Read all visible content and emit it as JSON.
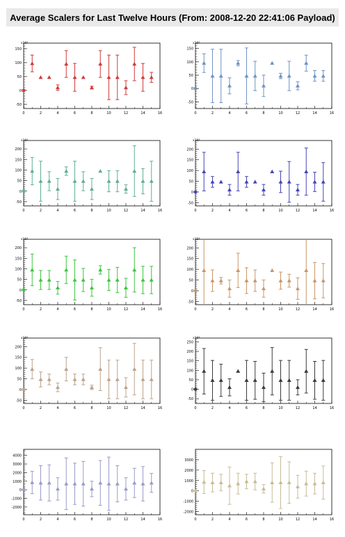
{
  "title": "Average Scalers for Last Twelve Hours (From: 2008-12-20 22:41:06 Payload)",
  "chart_data": [
    {
      "type": "scatter",
      "color": "#cf3b3b",
      "xlim": [
        0,
        16
      ],
      "xticks": [
        0,
        2,
        4,
        6,
        8,
        10,
        12,
        14,
        16
      ],
      "ylim": [
        -65,
        170
      ],
      "yticks": [
        -50,
        0,
        50,
        100,
        150
      ],
      "exponent": "x10³",
      "x": [
        0,
        1,
        2,
        3,
        4,
        5,
        6,
        7,
        8,
        9,
        10,
        11,
        12,
        13,
        14,
        15
      ],
      "y": [
        0,
        97,
        47,
        47,
        10,
        95,
        47,
        47,
        10,
        95,
        47,
        47,
        10,
        95,
        47,
        47
      ],
      "err": [
        3,
        30,
        0,
        0,
        10,
        48,
        50,
        0,
        5,
        48,
        80,
        80,
        25,
        60,
        50,
        18
      ]
    },
    {
      "type": "scatter",
      "color": "#6e93c5",
      "xlim": [
        0,
        16
      ],
      "xticks": [
        0,
        2,
        4,
        6,
        8,
        10,
        12,
        14,
        16
      ],
      "ylim": [
        -75,
        170
      ],
      "yticks": [
        -50,
        0,
        50,
        100,
        150
      ],
      "exponent": "x10³",
      "x": [
        0,
        1,
        2,
        3,
        4,
        5,
        6,
        7,
        8,
        9,
        10,
        11,
        12,
        13,
        14,
        15
      ],
      "y": [
        0,
        95,
        47,
        47,
        10,
        95,
        47,
        47,
        10,
        95,
        47,
        47,
        10,
        95,
        47,
        47
      ],
      "err": [
        3,
        35,
        100,
        100,
        30,
        10,
        105,
        55,
        40,
        0,
        10,
        55,
        15,
        30,
        20,
        20
      ]
    },
    {
      "type": "scatter",
      "color": "#5faf92",
      "xlim": [
        0,
        16
      ],
      "xticks": [
        0,
        2,
        4,
        6,
        8,
        10,
        12,
        14,
        16
      ],
      "ylim": [
        -70,
        240
      ],
      "yticks": [
        -50,
        0,
        50,
        100,
        150,
        200
      ],
      "exponent": "x10³",
      "x": [
        0,
        1,
        2,
        3,
        4,
        5,
        6,
        7,
        8,
        9,
        10,
        11,
        12,
        13,
        14,
        15
      ],
      "y": [
        0,
        95,
        47,
        47,
        10,
        95,
        47,
        47,
        10,
        95,
        47,
        47,
        10,
        95,
        47,
        47
      ],
      "err": [
        3,
        65,
        95,
        45,
        50,
        20,
        95,
        45,
        50,
        0,
        50,
        50,
        20,
        120,
        60,
        95
      ]
    },
    {
      "type": "scatter",
      "color": "#4545b5",
      "xlim": [
        0,
        16
      ],
      "xticks": [
        0,
        2,
        4,
        6,
        8,
        10,
        12,
        14,
        16
      ],
      "ylim": [
        -65,
        240
      ],
      "yticks": [
        -50,
        0,
        50,
        100,
        150,
        200
      ],
      "exponent": "x10³",
      "x": [
        0,
        1,
        2,
        3,
        4,
        5,
        6,
        7,
        8,
        9,
        10,
        11,
        12,
        13,
        14,
        15
      ],
      "y": [
        0,
        95,
        47,
        47,
        10,
        95,
        47,
        47,
        10,
        95,
        47,
        47,
        10,
        95,
        47,
        47
      ],
      "err": [
        3,
        90,
        25,
        0,
        25,
        90,
        25,
        0,
        25,
        0,
        50,
        95,
        25,
        110,
        45,
        90
      ]
    },
    {
      "type": "scatter",
      "color": "#3ec43e",
      "xlim": [
        0,
        16
      ],
      "xticks": [
        0,
        2,
        4,
        6,
        8,
        10,
        12,
        14,
        16
      ],
      "ylim": [
        -70,
        240
      ],
      "yticks": [
        -50,
        0,
        50,
        100,
        150,
        200
      ],
      "exponent": "x10³",
      "x": [
        0,
        1,
        2,
        3,
        4,
        5,
        6,
        7,
        8,
        9,
        10,
        11,
        12,
        13,
        14,
        15
      ],
      "y": [
        0,
        95,
        47,
        47,
        10,
        95,
        47,
        47,
        10,
        95,
        47,
        47,
        10,
        95,
        47,
        47
      ],
      "err": [
        3,
        75,
        45,
        45,
        30,
        65,
        95,
        55,
        40,
        20,
        50,
        60,
        45,
        105,
        65,
        65
      ]
    },
    {
      "type": "scatter",
      "color": "#c99566",
      "xlim": [
        0,
        16
      ],
      "xticks": [
        0,
        2,
        4,
        6,
        8,
        10,
        12,
        14,
        16
      ],
      "ylim": [
        -65,
        240
      ],
      "yticks": [
        -50,
        0,
        50,
        100,
        150,
        200
      ],
      "exponent": "x10³",
      "x": [
        0,
        1,
        2,
        3,
        4,
        5,
        6,
        7,
        8,
        9,
        10,
        11,
        12,
        13,
        14,
        15
      ],
      "y": [
        0,
        95,
        47,
        47,
        10,
        95,
        47,
        47,
        10,
        95,
        47,
        47,
        10,
        95,
        47,
        47
      ],
      "err": [
        3,
        175,
        50,
        15,
        40,
        80,
        60,
        50,
        40,
        0,
        40,
        30,
        50,
        175,
        85,
        80
      ]
    },
    {
      "type": "scatter",
      "color": "#bda38c",
      "xlim": [
        0,
        16
      ],
      "xticks": [
        0,
        2,
        4,
        6,
        8,
        10,
        12,
        14,
        16
      ],
      "ylim": [
        -65,
        240
      ],
      "yticks": [
        -50,
        0,
        50,
        100,
        150,
        200
      ],
      "exponent": "x10³",
      "x": [
        0,
        1,
        2,
        3,
        4,
        5,
        6,
        7,
        8,
        9,
        10,
        11,
        12,
        13,
        14,
        15
      ],
      "y": [
        0,
        95,
        47,
        47,
        10,
        95,
        47,
        47,
        10,
        95,
        47,
        47,
        10,
        95,
        47,
        47
      ],
      "err": [
        3,
        45,
        35,
        25,
        20,
        55,
        25,
        25,
        10,
        100,
        90,
        90,
        45,
        120,
        90,
        90
      ]
    },
    {
      "type": "scatter",
      "color": "#3a3a3a",
      "xlim": [
        0,
        16
      ],
      "xticks": [
        0,
        2,
        4,
        6,
        8,
        10,
        12,
        14,
        16
      ],
      "ylim": [
        -75,
        270
      ],
      "yticks": [
        -50,
        0,
        50,
        100,
        150,
        200,
        250
      ],
      "exponent": "x10³",
      "x": [
        0,
        1,
        2,
        3,
        4,
        5,
        6,
        7,
        8,
        9,
        10,
        11,
        12,
        13,
        14,
        15
      ],
      "y": [
        0,
        95,
        47,
        47,
        10,
        95,
        47,
        47,
        10,
        95,
        47,
        47,
        10,
        95,
        47,
        47
      ],
      "err": [
        3,
        120,
        105,
        85,
        45,
        0,
        105,
        100,
        75,
        125,
        105,
        105,
        40,
        115,
        100,
        105
      ]
    },
    {
      "type": "scatter",
      "color": "#9a9ac8",
      "xlim": [
        0,
        16
      ],
      "xticks": [
        0,
        2,
        4,
        6,
        8,
        10,
        12,
        14,
        16
      ],
      "ylim": [
        -2900,
        4700
      ],
      "yticks": [
        -2000,
        -1000,
        0,
        1000,
        2000,
        3000,
        4000
      ],
      "exponent": "",
      "x": [
        0,
        1,
        2,
        3,
        4,
        5,
        6,
        7,
        8,
        9,
        10,
        11,
        12,
        13,
        14,
        15
      ],
      "y": [
        0,
        850,
        800,
        800,
        100,
        700,
        700,
        700,
        100,
        800,
        700,
        700,
        100,
        800,
        700,
        800
      ],
      "err": [
        30,
        1300,
        2000,
        2100,
        1300,
        3000,
        2400,
        2600,
        900,
        2600,
        3100,
        2100,
        1300,
        1700,
        2000,
        1100
      ]
    },
    {
      "type": "scatter",
      "color": "#c7bc95",
      "xlim": [
        0,
        16
      ],
      "xticks": [
        0,
        2,
        4,
        6,
        8,
        10,
        12,
        14,
        16
      ],
      "ylim": [
        -2300,
        4000
      ],
      "yticks": [
        -2000,
        -1000,
        0,
        1000,
        2000,
        3000
      ],
      "exponent": "",
      "x": [
        0,
        1,
        2,
        3,
        4,
        5,
        6,
        7,
        8,
        9,
        10,
        11,
        12,
        13,
        14,
        15
      ],
      "y": [
        0,
        850,
        800,
        800,
        500,
        700,
        900,
        900,
        200,
        800,
        800,
        800,
        400,
        700,
        700,
        800
      ],
      "err": [
        30,
        1100,
        900,
        800,
        1800,
        1000,
        700,
        800,
        400,
        1900,
        2500,
        2000,
        1100,
        1200,
        1000,
        1600
      ]
    }
  ]
}
